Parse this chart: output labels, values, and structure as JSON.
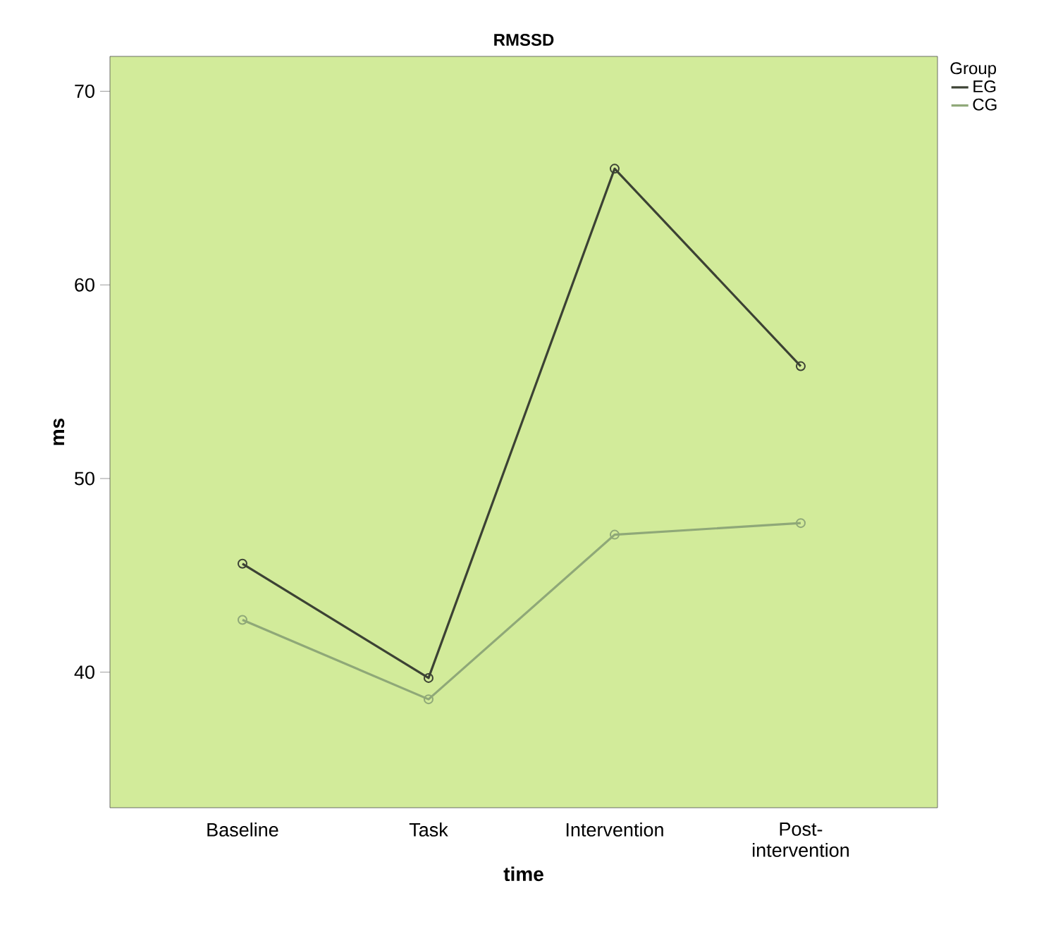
{
  "chart_data": {
    "type": "line",
    "title": "RMSSD",
    "xlabel": "time",
    "ylabel": "ms",
    "legend_title": "Group",
    "categories": [
      "Baseline",
      "Task",
      "Intervention",
      "Post-intervention"
    ],
    "series": [
      {
        "name": "EG",
        "color": "#3c4234",
        "values": [
          45.6,
          39.7,
          66.0,
          55.8
        ]
      },
      {
        "name": "CG",
        "color": "#8fa878",
        "values": [
          42.7,
          38.6,
          47.1,
          47.7
        ]
      }
    ],
    "ylim": [
      33.0,
      71.8
    ],
    "yticks": [
      40,
      50,
      60,
      70
    ],
    "grid": false,
    "legend": "top right",
    "marker": "circle",
    "line_style": "solid"
  }
}
